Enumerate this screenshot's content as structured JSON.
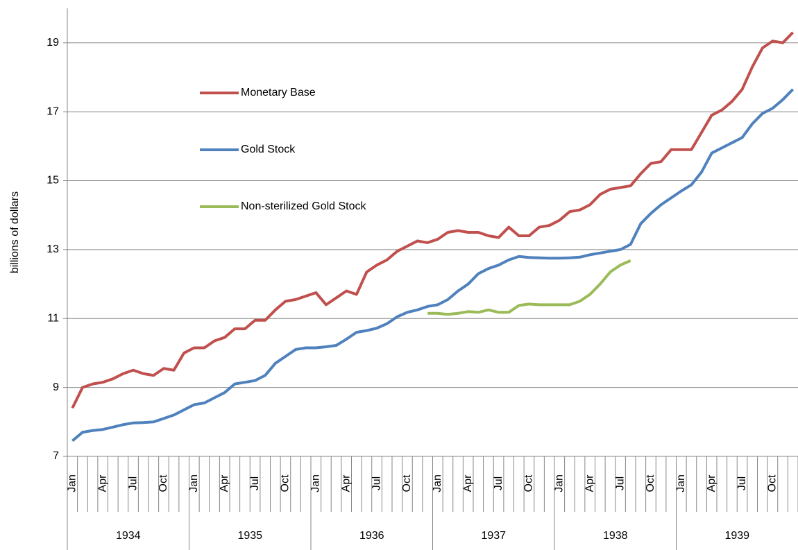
{
  "chart_data": {
    "type": "line",
    "y_label": "billions of dollars",
    "categories": [
      "Jan",
      null,
      null,
      "Apr",
      null,
      null,
      "Jul",
      null,
      null,
      "Oct",
      null,
      null,
      "Jan",
      null,
      null,
      "Apr",
      null,
      null,
      "Jul",
      null,
      null,
      "Oct",
      null,
      null,
      "Jan",
      null,
      null,
      "Apr",
      null,
      null,
      "Jul",
      null,
      null,
      "Oct",
      null,
      null,
      "Jan",
      null,
      null,
      "Apr",
      null,
      null,
      "Jul",
      null,
      null,
      "Oct",
      null,
      null,
      "Jan",
      null,
      null,
      "Apr",
      null,
      null,
      "Jul",
      null,
      null,
      "Oct",
      null,
      null,
      "Jan",
      null,
      null,
      "Apr",
      null,
      null,
      "Jul",
      null,
      null,
      "Oct",
      null,
      null
    ],
    "groups": [
      "1934",
      "1935",
      "1936",
      "1937",
      "1938",
      "1939"
    ],
    "ylim": [
      7,
      20
    ],
    "yticks": [
      7,
      9,
      11,
      13,
      15,
      17,
      19
    ],
    "grid": true,
    "legend": "upper-left-inside",
    "series": [
      {
        "name": "Monetary Base",
        "color": "#c0504d",
        "values": [
          8.4,
          9.0,
          9.1,
          9.15,
          9.25,
          9.4,
          9.5,
          9.4,
          9.35,
          9.55,
          9.5,
          10.0,
          10.15,
          10.15,
          10.35,
          10.45,
          10.7,
          10.7,
          10.95,
          10.95,
          11.25,
          11.5,
          11.55,
          11.65,
          11.75,
          11.4,
          11.6,
          11.8,
          11.7,
          12.35,
          12.55,
          12.7,
          12.95,
          13.1,
          13.25,
          13.2,
          13.3,
          13.5,
          13.55,
          13.5,
          13.5,
          13.4,
          13.35,
          13.65,
          13.4,
          13.4,
          13.65,
          13.7,
          13.85,
          14.1,
          14.15,
          14.3,
          14.6,
          14.75,
          14.8,
          14.85,
          15.2,
          15.5,
          15.55,
          15.9,
          15.9,
          15.9,
          16.4,
          16.9,
          17.05,
          17.3,
          17.65,
          18.3,
          18.85,
          19.05,
          19.0,
          19.3
        ]
      },
      {
        "name": "Gold Stock",
        "color": "#4f81bd",
        "values": [
          7.45,
          7.7,
          7.75,
          7.78,
          7.85,
          7.92,
          7.97,
          7.98,
          8.0,
          8.1,
          8.2,
          8.35,
          8.5,
          8.55,
          8.7,
          8.85,
          9.1,
          9.15,
          9.2,
          9.35,
          9.7,
          9.9,
          10.1,
          10.15,
          10.15,
          10.18,
          10.22,
          10.4,
          10.6,
          10.65,
          10.72,
          10.85,
          11.05,
          11.18,
          11.25,
          11.35,
          11.4,
          11.55,
          11.8,
          12.0,
          12.3,
          12.45,
          12.55,
          12.7,
          12.8,
          12.77,
          12.76,
          12.75,
          12.75,
          12.76,
          12.78,
          12.85,
          12.9,
          12.95,
          13.0,
          13.15,
          13.75,
          14.05,
          14.3,
          14.5,
          14.7,
          14.88,
          15.25,
          15.8,
          15.95,
          16.1,
          16.25,
          16.65,
          16.95,
          17.1,
          17.35,
          17.65
        ]
      },
      {
        "name": "Non-sterilized Gold Stock",
        "color": "#9bbb59",
        "values": [
          null,
          null,
          null,
          null,
          null,
          null,
          null,
          null,
          null,
          null,
          null,
          null,
          null,
          null,
          null,
          null,
          null,
          null,
          null,
          null,
          null,
          null,
          null,
          null,
          null,
          null,
          null,
          null,
          null,
          null,
          null,
          null,
          null,
          null,
          null,
          11.15,
          11.15,
          11.12,
          11.15,
          11.2,
          11.18,
          11.25,
          11.18,
          11.18,
          11.38,
          11.42,
          11.4,
          11.4,
          11.4,
          11.4,
          11.5,
          11.7,
          12.0,
          12.35,
          12.55,
          12.68,
          null,
          null,
          null,
          null,
          null,
          null,
          null,
          null,
          null,
          null,
          null,
          null,
          null,
          null,
          null,
          null
        ]
      }
    ]
  }
}
